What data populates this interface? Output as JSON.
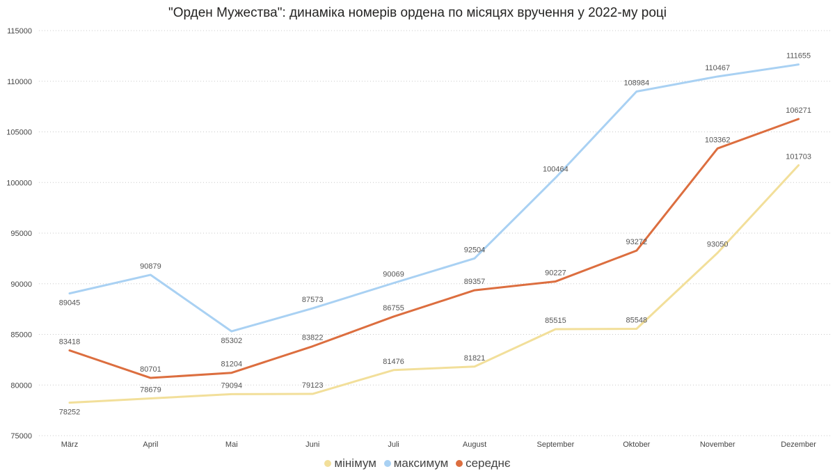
{
  "chart_data": {
    "type": "line",
    "title": "\"Орден Мужества\": динаміка номерів ордена по місяцях вручення у 2022-му році",
    "categories": [
      "März",
      "April",
      "Mai",
      "Juni",
      "Juli",
      "August",
      "September",
      "Oktober",
      "November",
      "Dezember"
    ],
    "ylim": [
      75000,
      115000
    ],
    "yticks": [
      75000,
      80000,
      85000,
      90000,
      95000,
      100000,
      105000,
      110000,
      115000
    ],
    "grid": true,
    "legend_position": "bottom-center",
    "series": [
      {
        "name": "мінімум",
        "color": "#f2df9a",
        "values": [
          78252,
          78679,
          79094,
          79123,
          81476,
          81821,
          85515,
          85548,
          93050,
          101703
        ]
      },
      {
        "name": "максимум",
        "color": "#a9d1f3",
        "values": [
          89045,
          90879,
          85302,
          87573,
          90069,
          92504,
          100464,
          108984,
          110467,
          111655
        ]
      },
      {
        "name": "середнє",
        "color": "#dc6e3f",
        "values": [
          83418,
          80701,
          81204,
          83822,
          86755,
          89357,
          90227,
          93272,
          103362,
          106271
        ]
      }
    ]
  }
}
